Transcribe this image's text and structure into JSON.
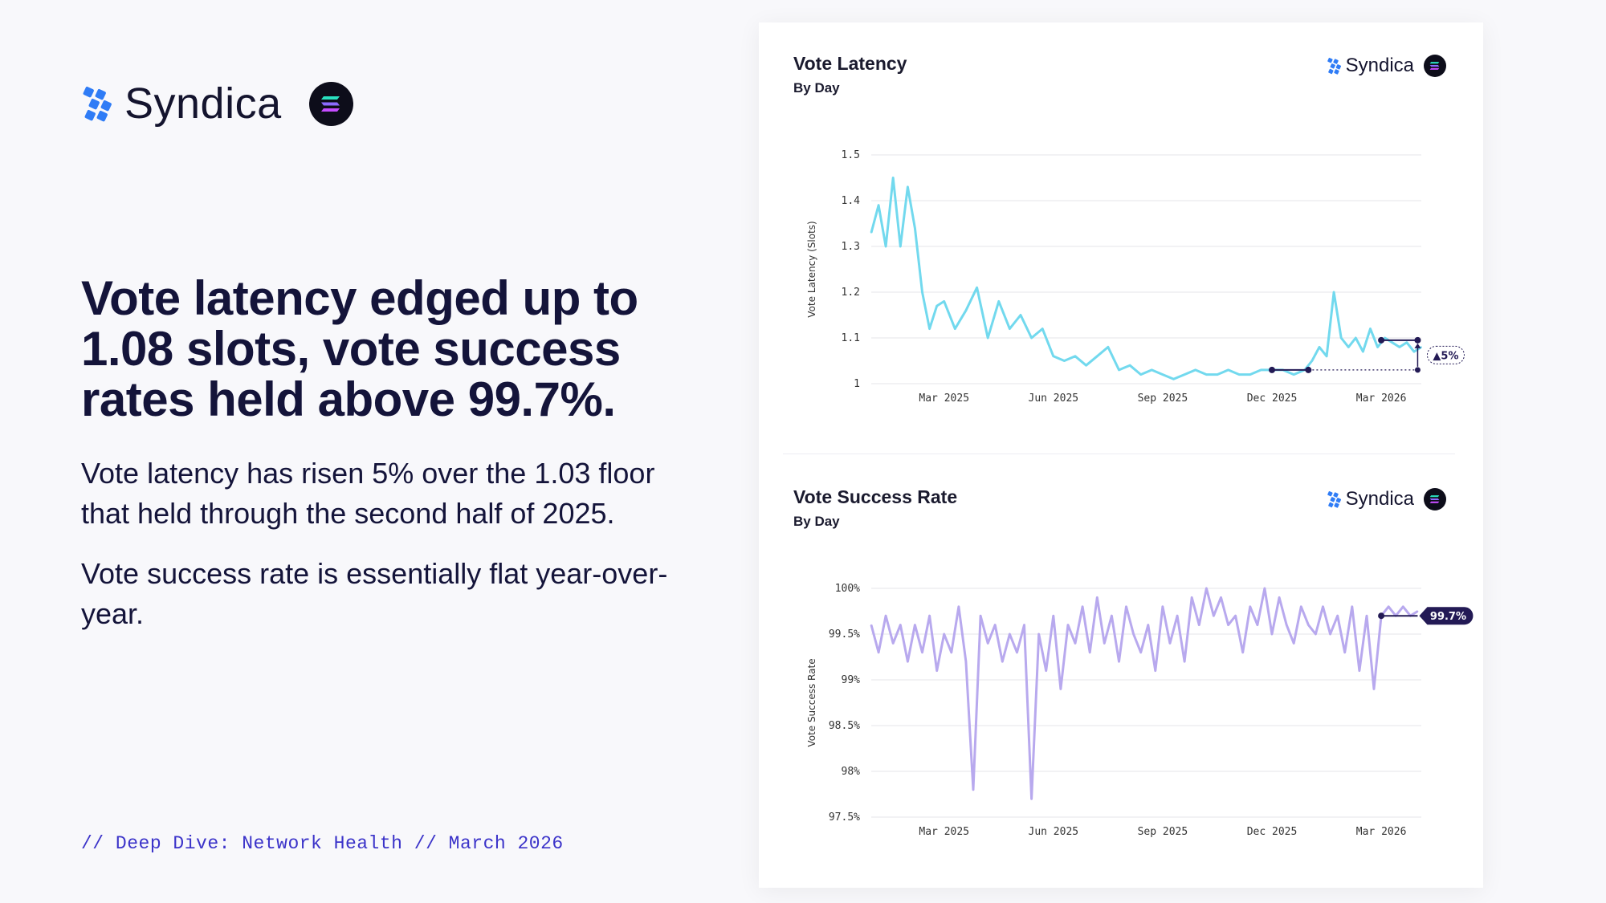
{
  "brand": {
    "name": "Syndica",
    "partner_icon": "solana-icon"
  },
  "headline": "Vote latency edged up to 1.08 slots, vote success rates held above 99.7%.",
  "paragraphs": [
    "Vote latency has risen 5% over the 1.03 floor that held through the second half of 2025.",
    "Vote success rate is essentially flat year-over-year."
  ],
  "footer": "// Deep Dive: Network Health // March 2026",
  "colors": {
    "latency": "#72d9ee",
    "success": "#b8a9ee",
    "accent": "#231a55",
    "text": "#14143a",
    "footer": "#3b33c9"
  },
  "chart_data": [
    {
      "type": "line",
      "title": "Vote Latency",
      "subtitle": "By Day",
      "ylabel": "Vote Latency (Slots)",
      "ylim": [
        1.0,
        1.5
      ],
      "yticks": [
        1.5,
        1.4,
        1.3,
        1.2,
        1.1,
        1.0
      ],
      "ytick_labels": [
        "1.5",
        "1.4",
        "1.3",
        "1.2",
        "1.1",
        "1"
      ],
      "xlim": [
        0,
        15.1
      ],
      "xticks": [
        2,
        5,
        8,
        11,
        14
      ],
      "xtick_labels": [
        "Mar 2025",
        "Jun 2025",
        "Sep 2025",
        "Dec 2025",
        "Mar 2026"
      ],
      "x": [
        0,
        0.2,
        0.4,
        0.6,
        0.8,
        1.0,
        1.2,
        1.4,
        1.6,
        1.8,
        2.0,
        2.3,
        2.6,
        2.9,
        3.2,
        3.5,
        3.8,
        4.1,
        4.4,
        4.7,
        5.0,
        5.3,
        5.6,
        5.9,
        6.2,
        6.5,
        6.8,
        7.1,
        7.4,
        7.7,
        8.0,
        8.3,
        8.6,
        8.9,
        9.2,
        9.5,
        9.8,
        10.1,
        10.4,
        10.7,
        11.0,
        11.3,
        11.6,
        11.9,
        12.1,
        12.3,
        12.5,
        12.7,
        12.9,
        13.1,
        13.3,
        13.5,
        13.7,
        13.9,
        14.1,
        14.3,
        14.5,
        14.7,
        14.9,
        15.1
      ],
      "values": [
        1.33,
        1.39,
        1.3,
        1.45,
        1.3,
        1.43,
        1.34,
        1.2,
        1.12,
        1.17,
        1.18,
        1.12,
        1.16,
        1.21,
        1.1,
        1.18,
        1.12,
        1.15,
        1.1,
        1.12,
        1.06,
        1.05,
        1.06,
        1.04,
        1.06,
        1.08,
        1.03,
        1.04,
        1.02,
        1.03,
        1.02,
        1.01,
        1.02,
        1.03,
        1.02,
        1.02,
        1.03,
        1.02,
        1.02,
        1.03,
        1.03,
        1.03,
        1.02,
        1.03,
        1.05,
        1.08,
        1.06,
        1.2,
        1.1,
        1.08,
        1.1,
        1.07,
        1.12,
        1.08,
        1.1,
        1.09,
        1.08,
        1.09,
        1.07,
        1.08
      ],
      "annotations": {
        "floor": {
          "x": [
            11.0,
            12.0
          ],
          "value": 1.03
        },
        "current": {
          "x": [
            14.0,
            15.0
          ],
          "value": 1.095
        },
        "change_label": "▲5%"
      }
    },
    {
      "type": "line",
      "title": "Vote Success Rate",
      "subtitle": "By Day",
      "ylabel": "Vote Success Rate",
      "ylim": [
        97.5,
        100
      ],
      "yticks": [
        100,
        99.5,
        99,
        98.5,
        98,
        97.5
      ],
      "ytick_labels": [
        "100%",
        "99.5%",
        "99%",
        "98.5%",
        "98%",
        "97.5%"
      ],
      "xlim": [
        0,
        15.1
      ],
      "xticks": [
        2,
        5,
        8,
        11,
        14
      ],
      "xtick_labels": [
        "Mar 2025",
        "Jun 2025",
        "Sep 2025",
        "Dec 2025",
        "Mar 2026"
      ],
      "x": [
        0,
        0.2,
        0.4,
        0.6,
        0.8,
        1.0,
        1.2,
        1.4,
        1.6,
        1.8,
        2.0,
        2.2,
        2.4,
        2.6,
        2.8,
        3.0,
        3.2,
        3.4,
        3.6,
        3.8,
        4.0,
        4.2,
        4.4,
        4.6,
        4.8,
        5.0,
        5.2,
        5.4,
        5.6,
        5.8,
        6.0,
        6.2,
        6.4,
        6.6,
        6.8,
        7.0,
        7.2,
        7.4,
        7.6,
        7.8,
        8.0,
        8.2,
        8.4,
        8.6,
        8.8,
        9.0,
        9.2,
        9.4,
        9.6,
        9.8,
        10.0,
        10.2,
        10.4,
        10.6,
        10.8,
        11.0,
        11.2,
        11.4,
        11.6,
        11.8,
        12.0,
        12.2,
        12.4,
        12.6,
        12.8,
        13.0,
        13.2,
        13.4,
        13.6,
        13.8,
        14.0,
        14.2,
        14.4,
        14.6,
        14.8,
        15.0
      ],
      "values": [
        99.6,
        99.3,
        99.7,
        99.4,
        99.6,
        99.2,
        99.6,
        99.3,
        99.7,
        99.1,
        99.5,
        99.3,
        99.8,
        99.2,
        97.8,
        99.7,
        99.4,
        99.6,
        99.2,
        99.5,
        99.3,
        99.6,
        97.7,
        99.5,
        99.1,
        99.7,
        98.9,
        99.6,
        99.4,
        99.8,
        99.3,
        99.9,
        99.4,
        99.7,
        99.2,
        99.8,
        99.5,
        99.3,
        99.6,
        99.1,
        99.8,
        99.4,
        99.7,
        99.2,
        99.9,
        99.6,
        100.0,
        99.7,
        99.9,
        99.6,
        99.7,
        99.3,
        99.8,
        99.6,
        100.0,
        99.5,
        99.9,
        99.6,
        99.4,
        99.8,
        99.6,
        99.5,
        99.8,
        99.5,
        99.7,
        99.3,
        99.8,
        99.1,
        99.7,
        98.9,
        99.7,
        99.8,
        99.7,
        99.8,
        99.7,
        99.75
      ],
      "annotations": {
        "current": {
          "x": [
            14.0,
            15.0
          ],
          "value": 99.7
        },
        "value_label": "99.7%"
      }
    }
  ]
}
